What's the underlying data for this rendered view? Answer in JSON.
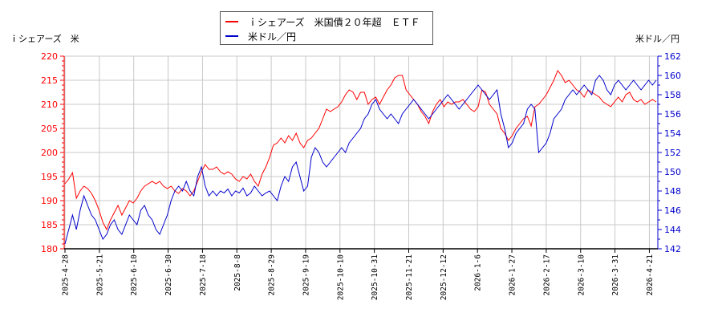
{
  "legend": {
    "series1_label": "ｉシェアーズ　米国債２０年超　ＥＴＦ",
    "series2_label": "米ドル／円"
  },
  "axis_titles": {
    "left": "ｉシェアーズ　米",
    "right": "米ドル／円"
  },
  "colors": {
    "series1": "#ff0000",
    "series2": "#0000cc",
    "grid": "#c8c8c8",
    "axis": "#000000"
  },
  "chart_data": {
    "type": "line",
    "title": "",
    "legend_position": "top-center",
    "grid": true,
    "x_tick_labels": [
      "2025-4-28",
      "2025-5-21",
      "2025-6-10",
      "2025-6-30",
      "2025-7-18",
      "2025-8-8",
      "2025-8-29",
      "2025-9-19",
      "2025-10-10",
      "2025-10-31",
      "2025-11-21",
      "2025-12-12",
      "2026-1-6",
      "2026-1-27",
      "2026-2-17",
      "2026-3-10",
      "2026-3-31",
      "2026-4-21"
    ],
    "y_left": {
      "label": "ｉシェアーズ　米",
      "range": [
        180,
        220
      ],
      "ticks": [
        180,
        185,
        190,
        195,
        200,
        205,
        210,
        215,
        220
      ]
    },
    "y_right": {
      "label": "米ドル／円",
      "range": [
        142,
        162
      ],
      "ticks": [
        142,
        144,
        146,
        148,
        150,
        152,
        154,
        156,
        158,
        160,
        162
      ]
    },
    "series": [
      {
        "name": "ｉシェアーズ　米国債２０年超　ＥＴＦ",
        "axis": "left",
        "color": "#ff0000",
        "x_dates_approx": "2025-4-28 to 2026-4-24",
        "values": [
          193.5,
          194.5,
          195.8,
          190.5,
          192.0,
          193.0,
          192.5,
          191.5,
          190.0,
          188.0,
          185.5,
          184.0,
          186.0,
          187.5,
          189.0,
          187.0,
          188.5,
          190.0,
          189.5,
          190.5,
          192.0,
          193.0,
          193.5,
          194.0,
          193.5,
          194.0,
          193.0,
          192.5,
          193.0,
          192.0,
          191.5,
          192.5,
          192.0,
          191.0,
          192.0,
          194.0,
          196.0,
          197.5,
          196.5,
          196.5,
          197.0,
          196.0,
          195.5,
          196.0,
          195.5,
          194.5,
          194.0,
          195.0,
          194.5,
          195.5,
          194.0,
          193.0,
          195.5,
          197.0,
          199.0,
          201.5,
          202.0,
          203.0,
          202.0,
          203.5,
          202.5,
          204.0,
          202.0,
          201.0,
          202.5,
          203.0,
          204.0,
          205.0,
          207.0,
          209.0,
          208.5,
          209.0,
          209.5,
          210.5,
          212.0,
          213.0,
          212.5,
          211.0,
          212.5,
          212.5,
          210.0,
          211.0,
          211.5,
          210.0,
          211.5,
          213.0,
          214.0,
          215.5,
          216.0,
          216.0,
          213.0,
          212.0,
          211.0,
          210.0,
          208.5,
          207.5,
          206.0,
          208.5,
          210.0,
          211.0,
          209.5,
          210.5,
          210.0,
          210.5,
          210.5,
          211.0,
          210.0,
          209.0,
          208.5,
          209.5,
          213.0,
          212.5,
          210.0,
          209.0,
          208.0,
          205.0,
          204.0,
          202.5,
          203.5,
          205.0,
          206.0,
          207.0,
          207.5,
          205.5,
          209.5,
          210.0,
          211.0,
          212.0,
          213.5,
          215.0,
          217.0,
          216.0,
          214.5,
          215.0,
          214.0,
          213.0,
          212.5,
          211.5,
          213.0,
          212.5,
          212.0,
          211.5,
          210.5,
          210.0,
          209.5,
          210.5,
          211.5,
          210.5,
          212.0,
          212.5,
          211.0,
          210.5,
          211.0,
          210.0,
          210.5,
          211.0,
          210.5
        ]
      },
      {
        "name": "米ドル／円",
        "axis": "right",
        "color": "#0000cc",
        "values": [
          142.5,
          144.0,
          145.5,
          144.0,
          146.0,
          147.5,
          146.5,
          145.5,
          145.0,
          144.0,
          143.0,
          143.5,
          144.5,
          145.0,
          144.0,
          143.5,
          144.5,
          145.5,
          145.0,
          144.5,
          146.0,
          146.5,
          145.5,
          145.0,
          144.0,
          143.5,
          144.5,
          145.5,
          147.0,
          148.0,
          148.5,
          148.0,
          149.0,
          148.0,
          147.5,
          149.5,
          150.5,
          148.5,
          147.5,
          148.0,
          147.5,
          148.0,
          147.8,
          148.2,
          147.5,
          148.0,
          147.8,
          148.3,
          147.5,
          147.8,
          148.5,
          148.0,
          147.5,
          147.8,
          148.0,
          147.5,
          147.0,
          148.5,
          149.5,
          149.0,
          150.5,
          151.0,
          149.5,
          148.0,
          148.5,
          151.5,
          152.5,
          152.0,
          151.0,
          150.5,
          151.0,
          151.5,
          152.0,
          152.5,
          152.0,
          153.0,
          153.5,
          154.0,
          154.5,
          155.5,
          156.0,
          157.0,
          157.5,
          156.5,
          156.0,
          155.5,
          156.0,
          155.5,
          155.0,
          156.0,
          156.5,
          157.0,
          157.5,
          157.0,
          156.5,
          156.0,
          155.5,
          156.0,
          156.5,
          157.0,
          157.5,
          158.0,
          157.5,
          157.0,
          156.5,
          157.0,
          157.5,
          158.0,
          158.5,
          159.0,
          158.5,
          158.0,
          157.5,
          158.0,
          158.5,
          156.0,
          154.5,
          152.5,
          153.0,
          154.0,
          154.5,
          155.0,
          156.5,
          157.0,
          156.5,
          152.0,
          152.5,
          153.0,
          154.0,
          155.5,
          156.0,
          156.5,
          157.5,
          158.0,
          158.5,
          158.0,
          158.5,
          159.0,
          158.5,
          158.0,
          159.5,
          160.0,
          159.5,
          158.5,
          158.0,
          159.0,
          159.5,
          159.0,
          158.5,
          159.0,
          159.5,
          159.0,
          158.5,
          159.0,
          159.5,
          159.0,
          159.5
        ]
      }
    ]
  }
}
